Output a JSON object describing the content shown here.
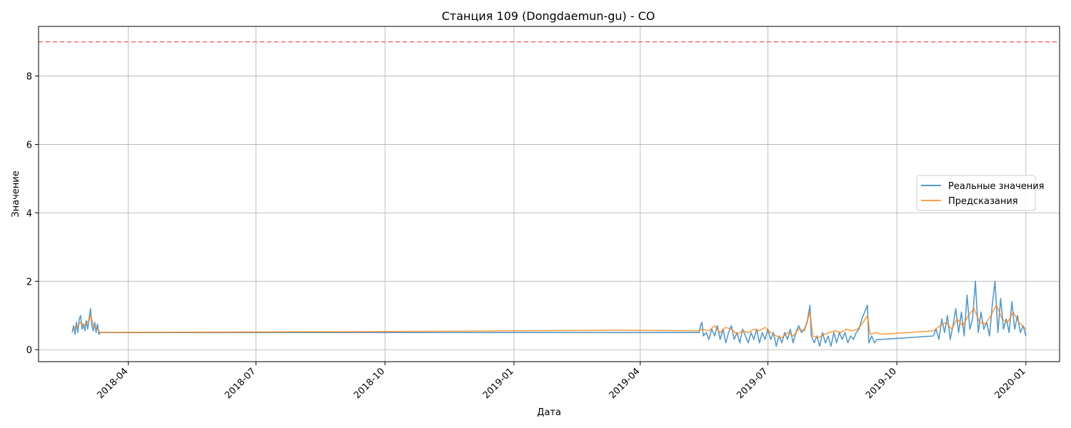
{
  "chart_data": {
    "type": "line",
    "title": "Станция 109 (Dongdaemun-gu) - CO",
    "xlabel": "Дата",
    "ylabel": "Значение",
    "x_type": "date",
    "xlim": [
      "2018-01-27",
      "2020-01-25"
    ],
    "ylim": [
      -0.35,
      9.45
    ],
    "x_ticks": [
      "2018-04-01",
      "2018-07-01",
      "2018-10-01",
      "2019-01-01",
      "2019-04-01",
      "2019-07-01",
      "2019-10-01",
      "2020-01-01"
    ],
    "x_tick_labels": [
      "2018-04",
      "2018-07",
      "2018-10",
      "2019-01",
      "2019-04",
      "2019-07",
      "2019-10",
      "2020-01"
    ],
    "y_ticks": [
      0,
      2,
      4,
      6,
      8
    ],
    "grid": true,
    "legend_position": "center-right",
    "reference_line": {
      "y": 9,
      "color": "#ff6666",
      "style": "dashed"
    },
    "series": [
      {
        "name": "Реальные значения",
        "color": "#1f77b4",
        "points": [
          [
            "2018-02-20",
            0.5
          ],
          [
            "2018-02-21",
            0.7
          ],
          [
            "2018-02-22",
            0.45
          ],
          [
            "2018-02-23",
            0.8
          ],
          [
            "2018-02-24",
            0.5
          ],
          [
            "2018-02-25",
            0.9
          ],
          [
            "2018-02-26",
            1.0
          ],
          [
            "2018-02-27",
            0.6
          ],
          [
            "2018-02-28",
            0.75
          ],
          [
            "2018-03-01",
            0.55
          ],
          [
            "2018-03-02",
            0.85
          ],
          [
            "2018-03-03",
            0.6
          ],
          [
            "2018-03-04",
            0.9
          ],
          [
            "2018-03-05",
            1.2
          ],
          [
            "2018-03-06",
            0.7
          ],
          [
            "2018-03-07",
            0.55
          ],
          [
            "2018-03-08",
            0.8
          ],
          [
            "2018-03-09",
            0.5
          ],
          [
            "2018-03-10",
            0.75
          ],
          [
            "2018-03-11",
            0.45
          ],
          [
            "2018-03-12",
            0.5
          ],
          [
            "2019-05-13",
            0.5
          ],
          [
            "2019-05-14",
            0.7
          ],
          [
            "2019-05-15",
            0.8
          ],
          [
            "2019-05-16",
            0.4
          ],
          [
            "2019-05-18",
            0.5
          ],
          [
            "2019-05-20",
            0.3
          ],
          [
            "2019-05-22",
            0.6
          ],
          [
            "2019-05-24",
            0.4
          ],
          [
            "2019-05-26",
            0.7
          ],
          [
            "2019-05-28",
            0.3
          ],
          [
            "2019-05-30",
            0.6
          ],
          [
            "2019-06-01",
            0.2
          ],
          [
            "2019-06-03",
            0.5
          ],
          [
            "2019-06-05",
            0.7
          ],
          [
            "2019-06-07",
            0.3
          ],
          [
            "2019-06-09",
            0.5
          ],
          [
            "2019-06-11",
            0.2
          ],
          [
            "2019-06-13",
            0.6
          ],
          [
            "2019-06-15",
            0.4
          ],
          [
            "2019-06-17",
            0.2
          ],
          [
            "2019-06-19",
            0.5
          ],
          [
            "2019-06-21",
            0.3
          ],
          [
            "2019-06-23",
            0.6
          ],
          [
            "2019-06-25",
            0.2
          ],
          [
            "2019-06-27",
            0.5
          ],
          [
            "2019-06-29",
            0.3
          ],
          [
            "2019-07-01",
            0.6
          ],
          [
            "2019-07-03",
            0.3
          ],
          [
            "2019-07-05",
            0.5
          ],
          [
            "2019-07-07",
            0.1
          ],
          [
            "2019-07-09",
            0.4
          ],
          [
            "2019-07-11",
            0.2
          ],
          [
            "2019-07-13",
            0.5
          ],
          [
            "2019-07-15",
            0.3
          ],
          [
            "2019-07-17",
            0.6
          ],
          [
            "2019-07-19",
            0.2
          ],
          [
            "2019-07-21",
            0.5
          ],
          [
            "2019-07-23",
            0.7
          ],
          [
            "2019-07-25",
            0.5
          ],
          [
            "2019-07-27",
            0.6
          ],
          [
            "2019-07-29",
            0.8
          ],
          [
            "2019-07-31",
            1.3
          ],
          [
            "2019-08-01",
            0.4
          ],
          [
            "2019-08-03",
            0.2
          ],
          [
            "2019-08-05",
            0.4
          ],
          [
            "2019-08-07",
            0.1
          ],
          [
            "2019-08-09",
            0.5
          ],
          [
            "2019-08-11",
            0.2
          ],
          [
            "2019-08-13",
            0.4
          ],
          [
            "2019-08-15",
            0.1
          ],
          [
            "2019-08-17",
            0.5
          ],
          [
            "2019-08-19",
            0.2
          ],
          [
            "2019-08-21",
            0.5
          ],
          [
            "2019-08-23",
            0.3
          ],
          [
            "2019-08-25",
            0.5
          ],
          [
            "2019-08-27",
            0.2
          ],
          [
            "2019-08-29",
            0.4
          ],
          [
            "2019-08-31",
            0.3
          ],
          [
            "2019-09-02",
            0.5
          ],
          [
            "2019-09-04",
            0.6
          ],
          [
            "2019-09-06",
            0.9
          ],
          [
            "2019-09-08",
            1.1
          ],
          [
            "2019-09-10",
            1.3
          ],
          [
            "2019-09-11",
            0.2
          ],
          [
            "2019-09-13",
            0.4
          ],
          [
            "2019-09-15",
            0.2
          ],
          [
            "2019-09-17",
            0.3
          ],
          [
            "2019-09-19",
            0.3
          ],
          [
            "2019-09-20",
            0.3
          ],
          [
            "2019-10-27",
            0.4
          ],
          [
            "2019-10-29",
            0.6
          ],
          [
            "2019-10-31",
            0.3
          ],
          [
            "2019-11-02",
            0.9
          ],
          [
            "2019-11-04",
            0.5
          ],
          [
            "2019-11-06",
            1.0
          ],
          [
            "2019-11-08",
            0.3
          ],
          [
            "2019-11-10",
            0.7
          ],
          [
            "2019-11-12",
            1.2
          ],
          [
            "2019-11-14",
            0.5
          ],
          [
            "2019-11-16",
            1.1
          ],
          [
            "2019-11-18",
            0.4
          ],
          [
            "2019-11-20",
            1.6
          ],
          [
            "2019-11-22",
            0.6
          ],
          [
            "2019-11-24",
            0.9
          ],
          [
            "2019-11-26",
            2.0
          ],
          [
            "2019-11-28",
            0.5
          ],
          [
            "2019-11-30",
            1.1
          ],
          [
            "2019-12-02",
            0.6
          ],
          [
            "2019-12-04",
            0.8
          ],
          [
            "2019-12-06",
            0.4
          ],
          [
            "2019-12-08",
            1.3
          ],
          [
            "2019-12-10",
            2.0
          ],
          [
            "2019-12-12",
            0.5
          ],
          [
            "2019-12-14",
            1.5
          ],
          [
            "2019-12-16",
            0.6
          ],
          [
            "2019-12-18",
            0.9
          ],
          [
            "2019-12-20",
            0.5
          ],
          [
            "2019-12-22",
            1.4
          ],
          [
            "2019-12-24",
            0.6
          ],
          [
            "2019-12-26",
            1.0
          ],
          [
            "2019-12-28",
            0.5
          ],
          [
            "2019-12-30",
            0.7
          ],
          [
            "2020-01-01",
            0.4
          ]
        ]
      },
      {
        "name": "Предсказания",
        "color": "#ff7f0e",
        "points": [
          [
            "2018-02-20",
            0.6
          ],
          [
            "2018-02-22",
            0.65
          ],
          [
            "2018-02-24",
            0.7
          ],
          [
            "2018-02-26",
            0.8
          ],
          [
            "2018-02-28",
            0.7
          ],
          [
            "2018-03-02",
            0.75
          ],
          [
            "2018-03-04",
            0.85
          ],
          [
            "2018-03-05",
            1.0
          ],
          [
            "2018-03-07",
            0.7
          ],
          [
            "2018-03-09",
            0.65
          ],
          [
            "2018-03-12",
            0.5
          ],
          [
            "2018-10-01",
            0.53
          ],
          [
            "2019-03-20",
            0.57
          ],
          [
            "2019-05-13",
            0.55
          ],
          [
            "2019-05-15",
            0.6
          ],
          [
            "2019-05-20",
            0.55
          ],
          [
            "2019-05-24",
            0.7
          ],
          [
            "2019-05-28",
            0.5
          ],
          [
            "2019-06-01",
            0.65
          ],
          [
            "2019-06-05",
            0.6
          ],
          [
            "2019-06-09",
            0.45
          ],
          [
            "2019-06-13",
            0.55
          ],
          [
            "2019-06-17",
            0.5
          ],
          [
            "2019-06-21",
            0.6
          ],
          [
            "2019-06-25",
            0.55
          ],
          [
            "2019-06-29",
            0.65
          ],
          [
            "2019-07-03",
            0.5
          ],
          [
            "2019-07-07",
            0.4
          ],
          [
            "2019-07-11",
            0.35
          ],
          [
            "2019-07-15",
            0.5
          ],
          [
            "2019-07-19",
            0.4
          ],
          [
            "2019-07-23",
            0.6
          ],
          [
            "2019-07-27",
            0.55
          ],
          [
            "2019-07-31",
            1.1
          ],
          [
            "2019-08-02",
            0.4
          ],
          [
            "2019-08-06",
            0.35
          ],
          [
            "2019-08-10",
            0.45
          ],
          [
            "2019-08-14",
            0.5
          ],
          [
            "2019-08-18",
            0.55
          ],
          [
            "2019-08-22",
            0.5
          ],
          [
            "2019-08-26",
            0.6
          ],
          [
            "2019-08-30",
            0.55
          ],
          [
            "2019-09-03",
            0.6
          ],
          [
            "2019-09-07",
            0.8
          ],
          [
            "2019-09-10",
            1.0
          ],
          [
            "2019-09-12",
            0.45
          ],
          [
            "2019-09-16",
            0.5
          ],
          [
            "2019-09-20",
            0.45
          ],
          [
            "2019-10-27",
            0.55
          ],
          [
            "2019-11-01",
            0.7
          ],
          [
            "2019-11-05",
            0.8
          ],
          [
            "2019-11-09",
            0.6
          ],
          [
            "2019-11-13",
            0.9
          ],
          [
            "2019-11-17",
            0.7
          ],
          [
            "2019-11-21",
            1.0
          ],
          [
            "2019-11-25",
            1.2
          ],
          [
            "2019-11-29",
            0.8
          ],
          [
            "2019-12-03",
            0.75
          ],
          [
            "2019-12-07",
            1.0
          ],
          [
            "2019-12-11",
            1.3
          ],
          [
            "2019-12-15",
            0.9
          ],
          [
            "2019-12-19",
            0.8
          ],
          [
            "2019-12-23",
            1.1
          ],
          [
            "2019-12-27",
            0.8
          ],
          [
            "2020-01-01",
            0.6
          ]
        ]
      }
    ]
  }
}
